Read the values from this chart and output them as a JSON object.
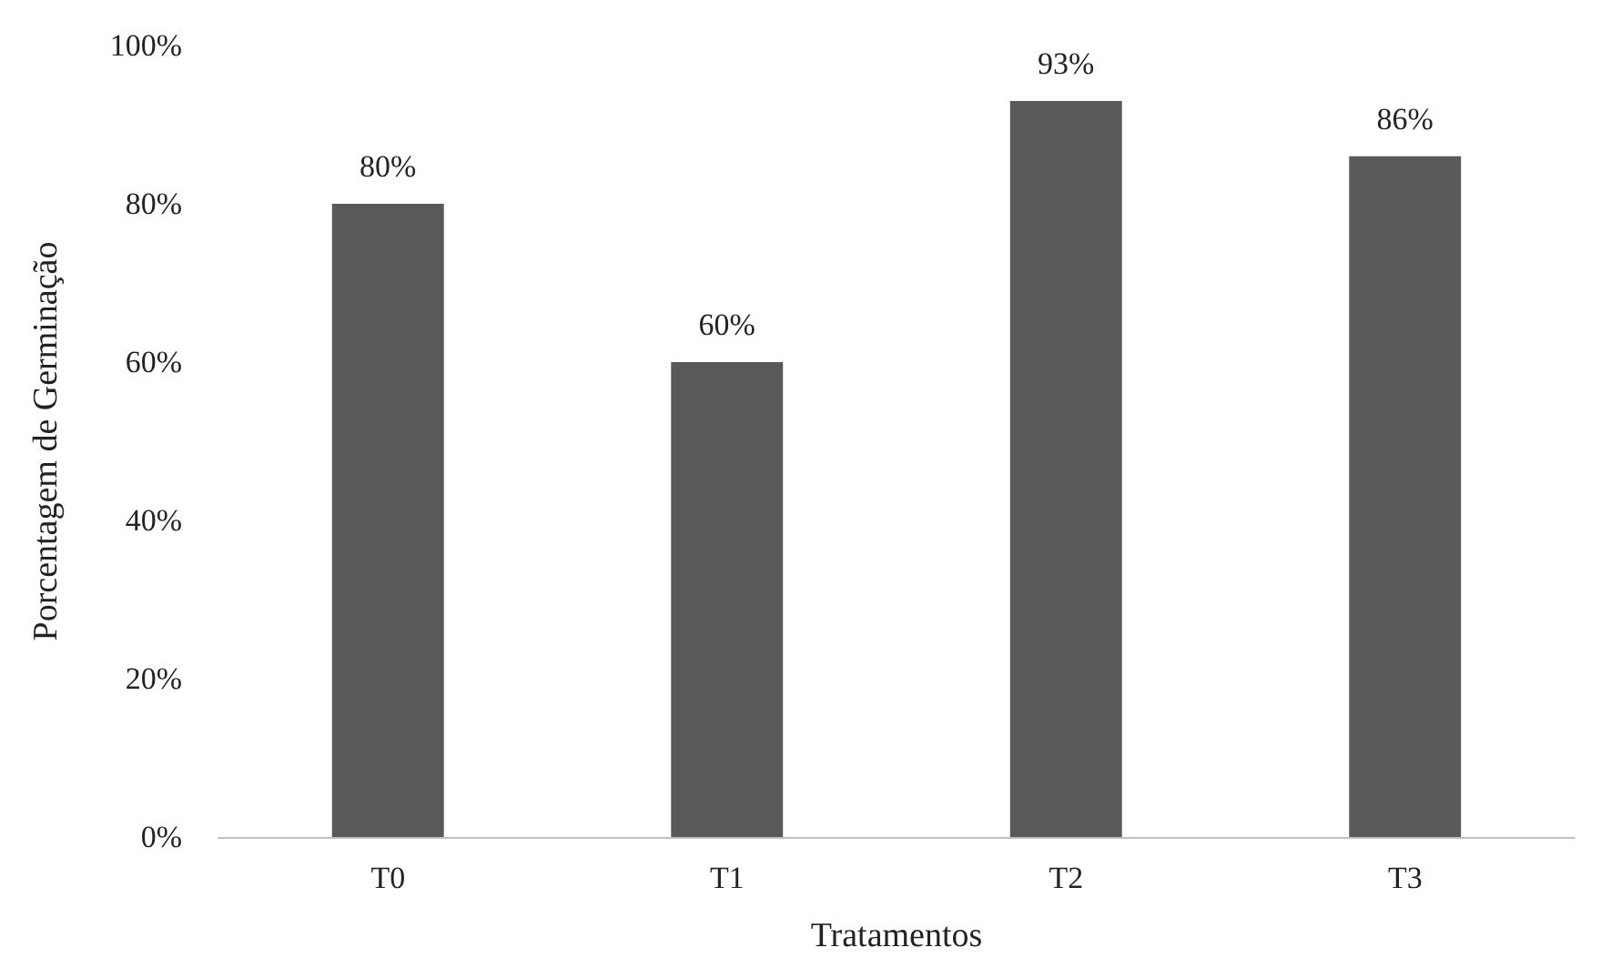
{
  "chart_data": {
    "type": "bar",
    "xlabel": "Tratamentos",
    "ylabel": "Porcentagem de Germinação",
    "categories": [
      "T0",
      "T1",
      "T2",
      "T3"
    ],
    "values": [
      80,
      60,
      93,
      86
    ],
    "value_labels": [
      "80%",
      "60%",
      "93%",
      "86%"
    ],
    "color": "#595959",
    "ylim": [
      0,
      100
    ],
    "yticks": [
      {
        "value": 0,
        "label": "0%"
      },
      {
        "value": 20,
        "label": "20%"
      },
      {
        "value": 40,
        "label": "40%"
      },
      {
        "value": 60,
        "label": "60%"
      },
      {
        "value": 80,
        "label": "80%"
      },
      {
        "value": 100,
        "label": "100%"
      }
    ],
    "grid": false
  }
}
